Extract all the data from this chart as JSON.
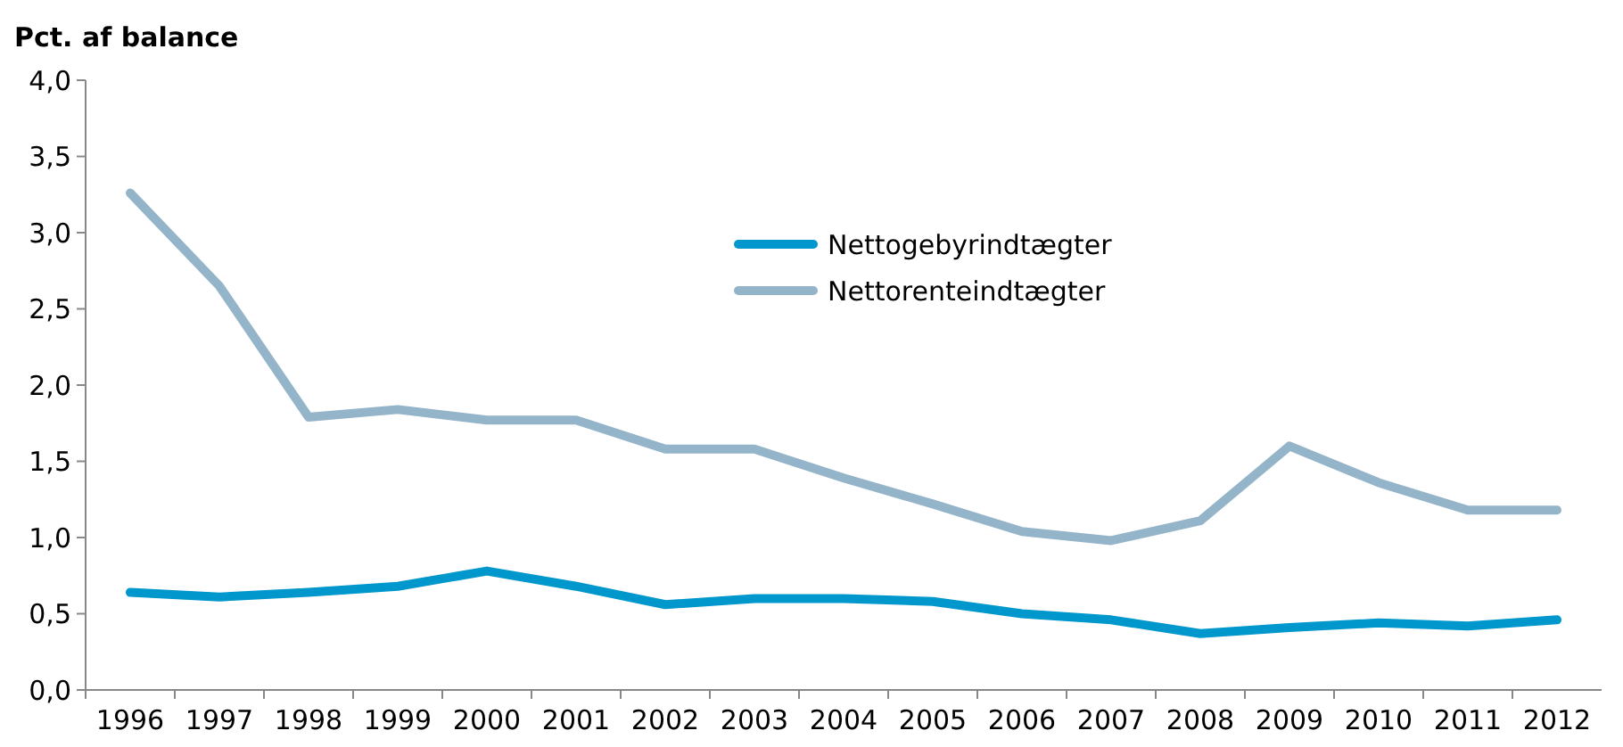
{
  "chart_data": {
    "type": "line",
    "ylabel": "Pct. af balance",
    "categories": [
      "1996",
      "1997",
      "1998",
      "1999",
      "2000",
      "2001",
      "2002",
      "2003",
      "2004",
      "2005",
      "2006",
      "2007",
      "2008",
      "2009",
      "2010",
      "2011",
      "2012"
    ],
    "series": [
      {
        "name": "Nettogebyrindtægter",
        "color": "#0097cc",
        "values": [
          0.64,
          0.61,
          0.64,
          0.68,
          0.78,
          0.68,
          0.56,
          0.6,
          0.6,
          0.58,
          0.5,
          0.46,
          0.37,
          0.41,
          0.44,
          0.42,
          0.46
        ]
      },
      {
        "name": "Nettorenteindtægter",
        "color": "#94b4c9",
        "values": [
          3.26,
          2.65,
          1.79,
          1.84,
          1.77,
          1.77,
          1.58,
          1.58,
          1.39,
          1.22,
          1.04,
          0.98,
          1.11,
          1.6,
          1.36,
          1.18,
          1.18
        ]
      }
    ],
    "ylim": [
      0,
      4
    ],
    "yticks": [
      {
        "value": 0,
        "label": "0,0"
      },
      {
        "value": 0.5,
        "label": "0,5"
      },
      {
        "value": 1,
        "label": "1,0"
      },
      {
        "value": 1.5,
        "label": "1,5"
      },
      {
        "value": 2,
        "label": "2,0"
      },
      {
        "value": 2.5,
        "label": "2,5"
      },
      {
        "value": 3,
        "label": "3,0"
      },
      {
        "value": 3.5,
        "label": "3,5"
      },
      {
        "value": 4,
        "label": "4,0"
      }
    ],
    "grid": false,
    "legend": "top",
    "marker": "none",
    "line_style": "solid"
  }
}
